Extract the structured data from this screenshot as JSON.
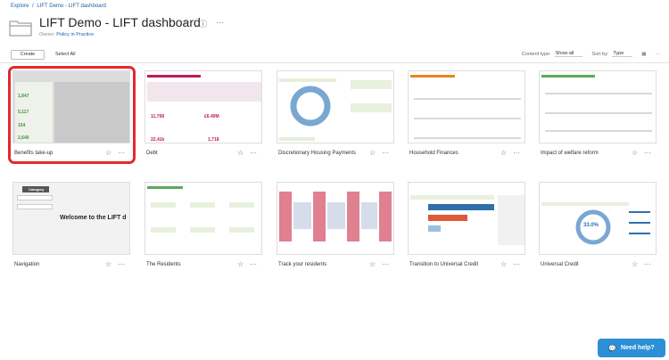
{
  "breadcrumb": {
    "root": "Explore",
    "sep": "/",
    "current": "LIFT Demo - LIFT dashboard"
  },
  "page": {
    "title": "LIFT Demo - LIFT dashboard",
    "owner_label": "Owner:",
    "owner_name": "Policy in Practice"
  },
  "toolbar": {
    "create_label": "Create",
    "select_all_label": "Select All",
    "content_type_label": "Content type:",
    "content_type_value": "Show all",
    "sort_label": "Sort by:",
    "sort_value": "Type"
  },
  "cards": [
    {
      "label": "Benefits take-up",
      "highlighted": true
    },
    {
      "label": "Debt"
    },
    {
      "label": "Discretionary Housing Payments"
    },
    {
      "label": "Household Finances"
    },
    {
      "label": "Impact of welfare reform"
    },
    {
      "label": "Navigation"
    },
    {
      "label": "The Residents"
    },
    {
      "label": "Track your residents"
    },
    {
      "label": "Transition to Universal Credit"
    },
    {
      "label": "Universal Credit"
    }
  ],
  "thumb_text": {
    "welcome": "Welcome to the LIFT d",
    "category": "Category",
    "uc_percent": "33.0%",
    "debt_a": "11,768",
    "debt_b": "£6.40M",
    "debt_c": "22.41k",
    "debt_d": "1,718",
    "ben_a": "1,847",
    "ben_b": "5,117",
    "ben_c": "154",
    "ben_d": "2,640"
  },
  "help": {
    "label": "Need help?"
  },
  "colors": {
    "accent": "#1f5fa5",
    "highlight": "#e02b2b",
    "help": "#2d8fd6"
  }
}
